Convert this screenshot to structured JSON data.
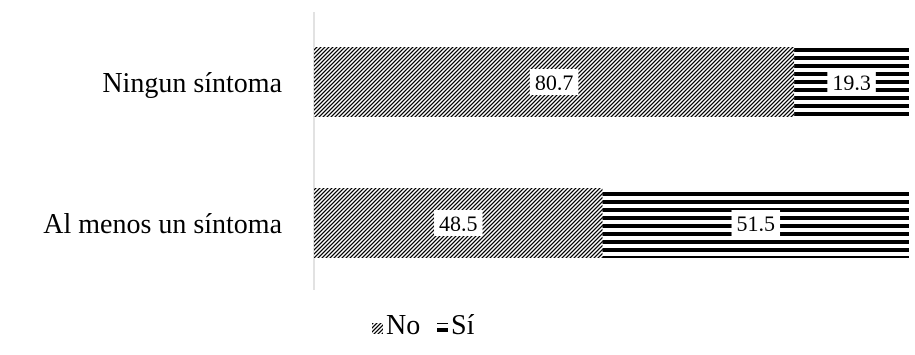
{
  "chart_data": {
    "type": "bar",
    "orientation": "horizontal",
    "stacked": true,
    "categories": [
      "Ningun síntoma",
      "Al menos un síntoma"
    ],
    "series": [
      {
        "name": "No",
        "values": [
          80.7,
          48.5
        ],
        "pattern": "diagonal-hatch"
      },
      {
        "name": "Sí",
        "values": [
          19.3,
          51.5
        ],
        "pattern": "horizontal-stripes"
      }
    ],
    "xlim": [
      0,
      100
    ],
    "grid": false,
    "legend": "bottom-center",
    "colors": {
      "ink": "#000000",
      "label_bg": "#ffffff",
      "axis": "#d9d9d9"
    }
  }
}
